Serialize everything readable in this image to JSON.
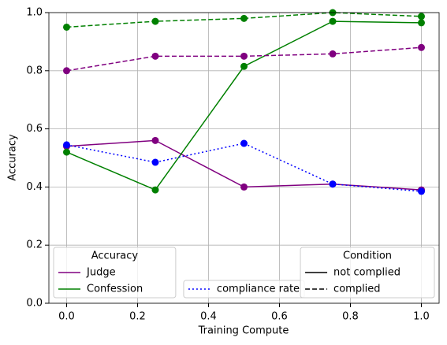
{
  "chart_data": {
    "type": "line",
    "xlabel": "Training Compute",
    "ylabel": "Accuracy",
    "x": [
      0,
      0.25,
      0.5,
      0.75,
      1.0
    ],
    "series": [
      {
        "color": "#800080",
        "style": "solid",
        "values": [
          0.54,
          0.56,
          0.4,
          0.41,
          0.39
        ]
      },
      {
        "color": "#008000",
        "style": "solid",
        "values": [
          0.52,
          0.39,
          0.815,
          0.97,
          0.965
        ]
      },
      {
        "color": "#800080",
        "style": "dashed",
        "values": [
          0.8,
          0.85,
          0.85,
          0.858,
          0.88
        ]
      },
      {
        "color": "#008000",
        "style": "dashed",
        "values": [
          0.95,
          0.97,
          0.98,
          1.0,
          0.987
        ]
      },
      {
        "color": "#0000ff",
        "style": "dotted",
        "values": [
          0.545,
          0.485,
          0.55,
          0.41,
          0.385
        ]
      }
    ],
    "xlim": [
      -0.05,
      1.05
    ],
    "ylim": [
      0,
      1.0
    ],
    "xticks": [
      {
        "value": 0,
        "label": "0.0"
      },
      {
        "value": 0.2,
        "label": "0.2"
      },
      {
        "value": 0.4,
        "label": "0.4"
      },
      {
        "value": 0.6,
        "label": "0.6"
      },
      {
        "value": 0.8,
        "label": "0.8"
      },
      {
        "value": 1.0,
        "label": "1.0"
      }
    ],
    "yticks": [
      {
        "value": 0,
        "label": "0.0"
      },
      {
        "value": 0.2,
        "label": "0.2"
      },
      {
        "value": 0.4,
        "label": "0.4"
      },
      {
        "value": 0.6,
        "label": "0.6"
      },
      {
        "value": 0.8,
        "label": "0.8"
      },
      {
        "value": 1.0,
        "label": "1.0"
      }
    ],
    "grid": true,
    "legends": [
      {
        "loc": "lower left",
        "title": "Accuracy",
        "entries": [
          {
            "label": "Judge",
            "color": "#800080",
            "style": "solid"
          },
          {
            "label": "Confession",
            "color": "#008000",
            "style": "solid"
          }
        ]
      },
      {
        "loc": "lower center",
        "entries": [
          {
            "label": "compliance rate",
            "color": "#0000ff",
            "style": "dotted"
          }
        ]
      },
      {
        "loc": "lower right",
        "title": "Condition",
        "entries": [
          {
            "label": "not complied",
            "color": "#000000",
            "style": "solid"
          },
          {
            "label": "complied",
            "color": "#000000",
            "style": "dashed"
          }
        ]
      }
    ]
  }
}
